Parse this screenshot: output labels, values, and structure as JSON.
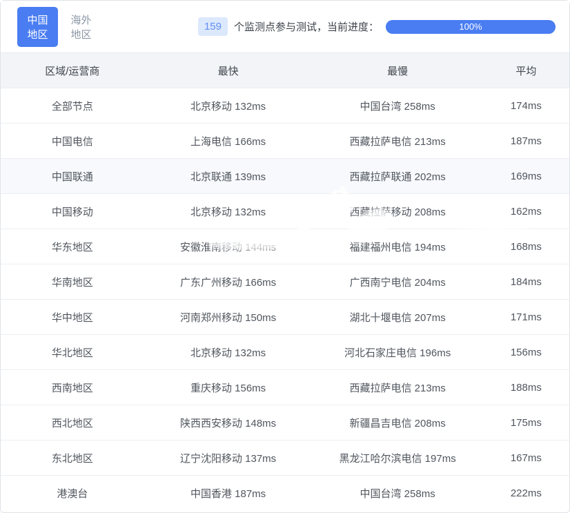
{
  "topbar": {
    "tabs": [
      {
        "label": "中国地区",
        "active": true
      },
      {
        "label": "海外地区",
        "active": false
      }
    ],
    "monitor_count": "159",
    "monitor_text": "个监测点参与测试，当前进度：",
    "progress_label": "100%",
    "progress_percent": 100
  },
  "colors": {
    "accent_blue": "#4a7df2",
    "badge_bg": "#dce8fc",
    "badge_text": "#5f8ef2",
    "header_bg": "#f2f4f7",
    "row_highlight_bg": "#f7f9fc",
    "border": "#ebeef2"
  },
  "table": {
    "columns": [
      "区域/运营商",
      "最快",
      "最慢",
      "平均"
    ],
    "rows": [
      {
        "region": "全部节点",
        "fastest": "北京移动 132ms",
        "slowest": "中国台湾 258ms",
        "average": "174ms",
        "highlighted": false
      },
      {
        "region": "中国电信",
        "fastest": "上海电信 166ms",
        "slowest": "西藏拉萨电信 213ms",
        "average": "187ms",
        "highlighted": false
      },
      {
        "region": "中国联通",
        "fastest": "北京联通 139ms",
        "slowest": "西藏拉萨联通 202ms",
        "average": "169ms",
        "highlighted": true
      },
      {
        "region": "中国移动",
        "fastest": "北京移动 132ms",
        "slowest": "西藏拉萨移动 208ms",
        "average": "162ms",
        "highlighted": false
      },
      {
        "region": "华东地区",
        "fastest": "安徽淮南移动 144ms",
        "slowest": "福建福州电信 194ms",
        "average": "168ms",
        "highlighted": false
      },
      {
        "region": "华南地区",
        "fastest": "广东广州移动 166ms",
        "slowest": "广西南宁电信 204ms",
        "average": "184ms",
        "highlighted": false
      },
      {
        "region": "华中地区",
        "fastest": "河南郑州移动 150ms",
        "slowest": "湖北十堰电信 207ms",
        "average": "171ms",
        "highlighted": false
      },
      {
        "region": "华北地区",
        "fastest": "北京移动 132ms",
        "slowest": "河北石家庄电信 196ms",
        "average": "156ms",
        "highlighted": false
      },
      {
        "region": "西南地区",
        "fastest": "重庆移动 156ms",
        "slowest": "西藏拉萨电信 213ms",
        "average": "188ms",
        "highlighted": false
      },
      {
        "region": "西北地区",
        "fastest": "陕西西安移动 148ms",
        "slowest": "新疆昌吉电信 208ms",
        "average": "175ms",
        "highlighted": false
      },
      {
        "region": "东北地区",
        "fastest": "辽宁沈阳移动 137ms",
        "slowest": "黑龙江哈尔滨电信 197ms",
        "average": "167ms",
        "highlighted": false
      },
      {
        "region": "港澳台",
        "fastest": "中国香港 187ms",
        "slowest": "中国台湾 258ms",
        "average": "222ms",
        "highlighted": false
      }
    ]
  },
  "watermark": "org"
}
